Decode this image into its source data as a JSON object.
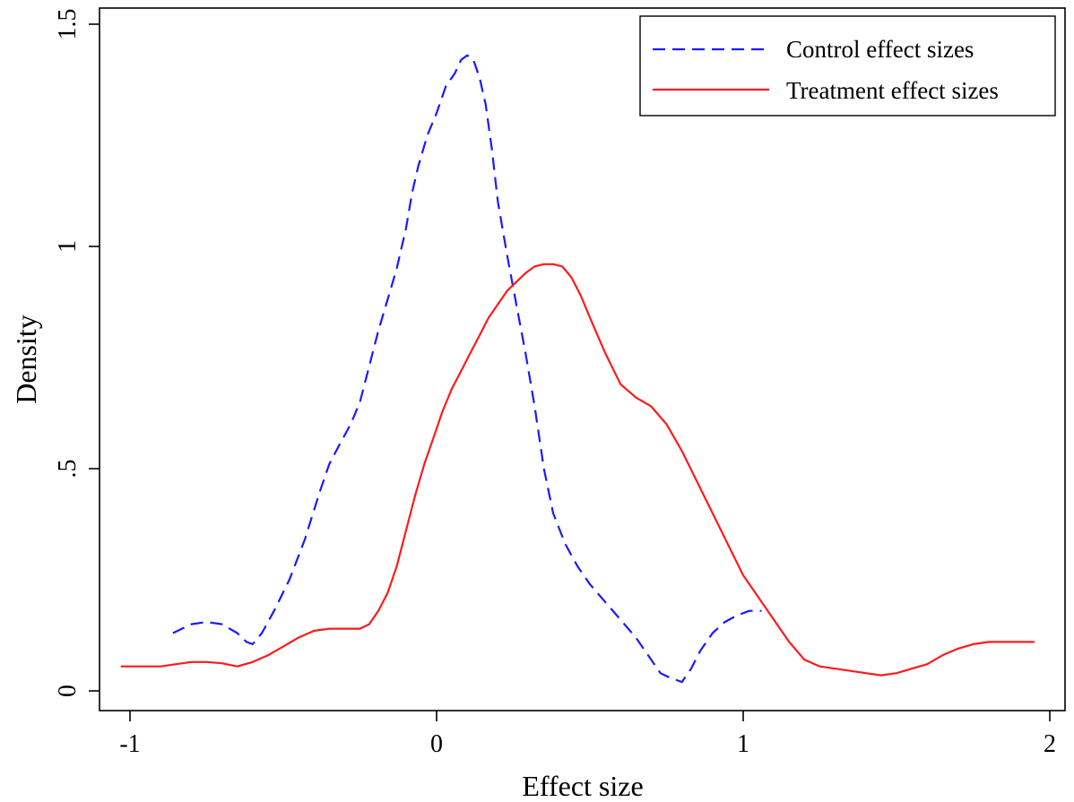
{
  "chart_data": {
    "type": "line",
    "title": "",
    "xlabel": "Effect size",
    "ylabel": "Density",
    "xlim": [
      -1.05,
      2.05
    ],
    "ylim": [
      0,
      1.55
    ],
    "grid": false,
    "legend_position": "top-right",
    "x_ticks": [
      {
        "value": -1,
        "label": "-1"
      },
      {
        "value": 0,
        "label": "0"
      },
      {
        "value": 1,
        "label": "1"
      },
      {
        "value": 2,
        "label": "2"
      }
    ],
    "y_ticks": [
      {
        "value": 0,
        "label": "0"
      },
      {
        "value": 0.5,
        "label": ".5"
      },
      {
        "value": 1,
        "label": "1"
      },
      {
        "value": 1.5,
        "label": "1.5"
      }
    ],
    "series": [
      {
        "name": "Control effect sizes",
        "color": "#1a1aff",
        "style": "dashed",
        "x": [
          -0.86,
          -0.8,
          -0.75,
          -0.7,
          -0.65,
          -0.62,
          -0.6,
          -0.57,
          -0.53,
          -0.48,
          -0.43,
          -0.38,
          -0.35,
          -0.32,
          -0.28,
          -0.25,
          -0.22,
          -0.19,
          -0.16,
          -0.13,
          -0.1,
          -0.08,
          -0.06,
          -0.03,
          0.0,
          0.03,
          0.06,
          0.08,
          0.1,
          0.12,
          0.14,
          0.16,
          0.18,
          0.2,
          0.23,
          0.26,
          0.29,
          0.32,
          0.35,
          0.38,
          0.42,
          0.46,
          0.5,
          0.55,
          0.6,
          0.65,
          0.7,
          0.73,
          0.76,
          0.8,
          0.83,
          0.86,
          0.9,
          0.94,
          0.98,
          1.02,
          1.06
        ],
        "y": [
          0.13,
          0.15,
          0.155,
          0.15,
          0.13,
          0.11,
          0.105,
          0.13,
          0.18,
          0.25,
          0.34,
          0.45,
          0.51,
          0.55,
          0.6,
          0.65,
          0.73,
          0.81,
          0.88,
          0.95,
          1.04,
          1.12,
          1.18,
          1.25,
          1.3,
          1.36,
          1.39,
          1.42,
          1.43,
          1.42,
          1.38,
          1.32,
          1.22,
          1.1,
          0.98,
          0.87,
          0.76,
          0.64,
          0.5,
          0.4,
          0.33,
          0.28,
          0.24,
          0.2,
          0.16,
          0.12,
          0.07,
          0.04,
          0.03,
          0.02,
          0.05,
          0.09,
          0.13,
          0.155,
          0.17,
          0.18,
          0.18
        ]
      },
      {
        "name": "Treatment effect sizes",
        "color": "#ff1a1a",
        "style": "solid",
        "x": [
          -1.03,
          -0.95,
          -0.9,
          -0.85,
          -0.8,
          -0.75,
          -0.7,
          -0.65,
          -0.6,
          -0.55,
          -0.5,
          -0.45,
          -0.4,
          -0.35,
          -0.3,
          -0.25,
          -0.22,
          -0.19,
          -0.16,
          -0.13,
          -0.1,
          -0.07,
          -0.04,
          -0.01,
          0.02,
          0.05,
          0.08,
          0.11,
          0.14,
          0.17,
          0.2,
          0.23,
          0.26,
          0.29,
          0.32,
          0.35,
          0.38,
          0.41,
          0.44,
          0.47,
          0.5,
          0.55,
          0.6,
          0.65,
          0.7,
          0.75,
          0.8,
          0.85,
          0.9,
          0.95,
          1.0,
          1.05,
          1.1,
          1.15,
          1.2,
          1.25,
          1.3,
          1.35,
          1.4,
          1.45,
          1.5,
          1.55,
          1.6,
          1.65,
          1.7,
          1.75,
          1.8,
          1.85,
          1.9,
          1.95
        ],
        "y": [
          0.055,
          0.055,
          0.055,
          0.06,
          0.065,
          0.065,
          0.062,
          0.055,
          0.065,
          0.08,
          0.1,
          0.12,
          0.135,
          0.14,
          0.14,
          0.14,
          0.15,
          0.18,
          0.22,
          0.28,
          0.36,
          0.44,
          0.51,
          0.57,
          0.63,
          0.68,
          0.72,
          0.76,
          0.8,
          0.84,
          0.87,
          0.9,
          0.92,
          0.94,
          0.955,
          0.96,
          0.96,
          0.955,
          0.93,
          0.89,
          0.84,
          0.76,
          0.69,
          0.66,
          0.64,
          0.6,
          0.54,
          0.47,
          0.4,
          0.33,
          0.26,
          0.21,
          0.16,
          0.11,
          0.07,
          0.055,
          0.05,
          0.045,
          0.04,
          0.035,
          0.04,
          0.05,
          0.06,
          0.08,
          0.095,
          0.105,
          0.11,
          0.11,
          0.11,
          0.11
        ]
      }
    ]
  }
}
